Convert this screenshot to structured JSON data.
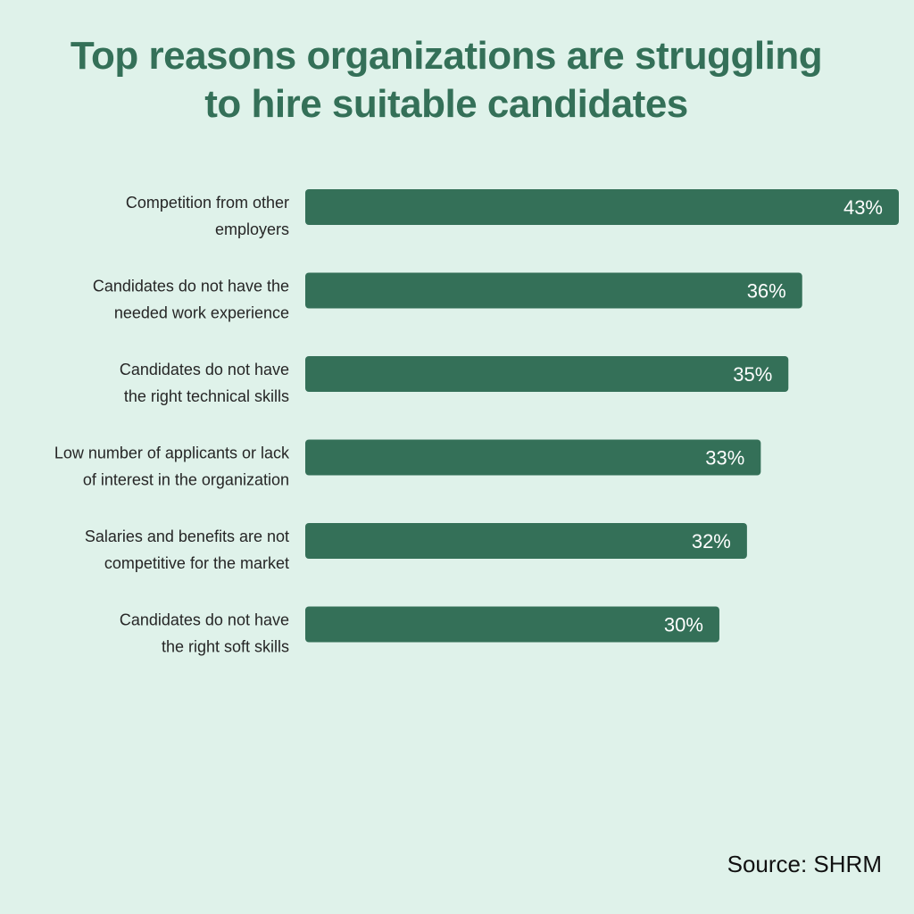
{
  "colors": {
    "background": "#dff2ea",
    "bar": "#347058",
    "title": "#347058",
    "value_text": "#ffffff",
    "label_text": "#262626"
  },
  "chart_data": {
    "type": "bar",
    "orientation": "horizontal",
    "title": [
      "Top reasons organizations are struggling",
      "to hire suitable candidates"
    ],
    "categories": [
      [
        "Competition from other",
        "employers"
      ],
      [
        "Candidates do not have the",
        "needed work experience"
      ],
      [
        "Candidates do not have",
        "the right technical skills"
      ],
      [
        "Low number of applicants or lack",
        "of interest in the organization"
      ],
      [
        "Salaries and benefits are not",
        "competitive for the market"
      ],
      [
        "Candidates do not have",
        "the right soft skills"
      ]
    ],
    "values": [
      43,
      36,
      35,
      33,
      32,
      30
    ],
    "value_labels": [
      "43%",
      "36%",
      "35%",
      "33%",
      "32%",
      "30%"
    ],
    "unit": "%",
    "grid": false,
    "legend": "none"
  },
  "footer": {
    "source": "Source: SHRM"
  }
}
